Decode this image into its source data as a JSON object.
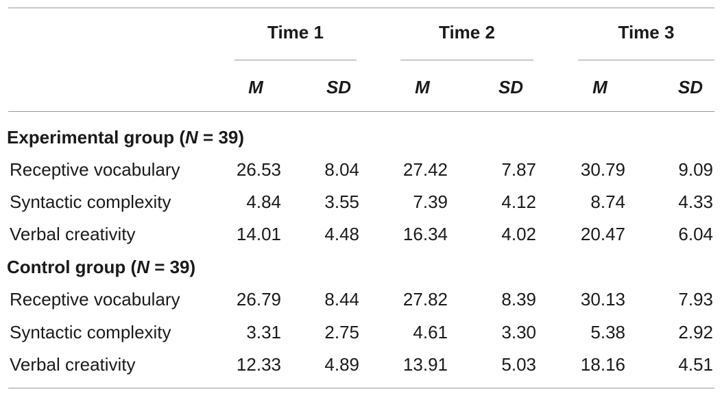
{
  "table": {
    "time_headers": [
      "Time 1",
      "Time 2",
      "Time 3"
    ],
    "stat_headers": [
      "M",
      "SD",
      "M",
      "SD",
      "M",
      "SD"
    ],
    "groups": [
      {
        "label_prefix": "Experimental group (",
        "label_n": "N",
        "label_suffix": " = 39)",
        "rows": [
          {
            "label": "Receptive vocabulary",
            "values": [
              "26.53",
              "8.04",
              "27.42",
              "7.87",
              "30.79",
              "9.09"
            ]
          },
          {
            "label": "Syntactic complexity",
            "values": [
              "4.84",
              "3.55",
              "7.39",
              "4.12",
              "8.74",
              "4.33"
            ]
          },
          {
            "label": "Verbal creativity",
            "values": [
              "14.01",
              "4.48",
              "16.34",
              "4.02",
              "20.47",
              "6.04"
            ]
          }
        ]
      },
      {
        "label_prefix": "Control group (",
        "label_n": "N",
        "label_suffix": " = 39)",
        "rows": [
          {
            "label": "Receptive vocabulary",
            "values": [
              "26.79",
              "8.44",
              "27.82",
              "8.39",
              "30.13",
              "7.93"
            ]
          },
          {
            "label": "Syntactic complexity",
            "values": [
              "3.31",
              "2.75",
              "4.61",
              "3.30",
              "5.38",
              "2.92"
            ]
          },
          {
            "label": "Verbal creativity",
            "values": [
              "12.33",
              "4.89",
              "13.91",
              "5.03",
              "18.16",
              "4.51"
            ]
          }
        ]
      }
    ]
  }
}
